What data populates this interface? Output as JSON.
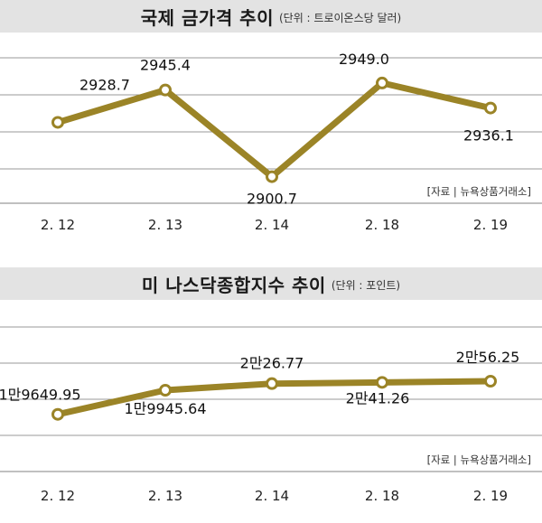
{
  "chart_data": [
    {
      "type": "line",
      "title": "국제 금가격 추이",
      "unit": "(단위 : 트로이온스당 달러)",
      "categories": [
        "2. 12",
        "2. 13",
        "2. 14",
        "2. 18",
        "2. 19"
      ],
      "values": [
        2928.7,
        2945.4,
        2900.7,
        2949.0,
        2936.1
      ],
      "labels": [
        "2928.7",
        "2945.4",
        "2900.7",
        "2949.0",
        "2936.1"
      ],
      "ylim": [
        2887,
        2962
      ],
      "grid": true,
      "source": "[자료 | 뉴욕상품거래소]"
    },
    {
      "type": "line",
      "title": "미 나스닥종합지수 추이",
      "unit": "(단위 : 포인트)",
      "categories": [
        "2. 12",
        "2. 13",
        "2. 14",
        "2. 18",
        "2. 19"
      ],
      "values": [
        19649.95,
        19945.64,
        20026.77,
        20041.26,
        20056.25
      ],
      "labels": [
        "1만9649.95",
        "1만9945.64",
        "2만26.77",
        "2만41.26",
        "2만56.25"
      ],
      "ylim": [
        18950,
        20720
      ],
      "grid": true,
      "source": "[자료 | 뉴욕상품거래소]"
    }
  ],
  "style": {
    "line_color": "#9b8427",
    "marker_fill": "#ffffff",
    "title_bg": "#e3e3e3",
    "grid_color": "#9a9a9a"
  }
}
